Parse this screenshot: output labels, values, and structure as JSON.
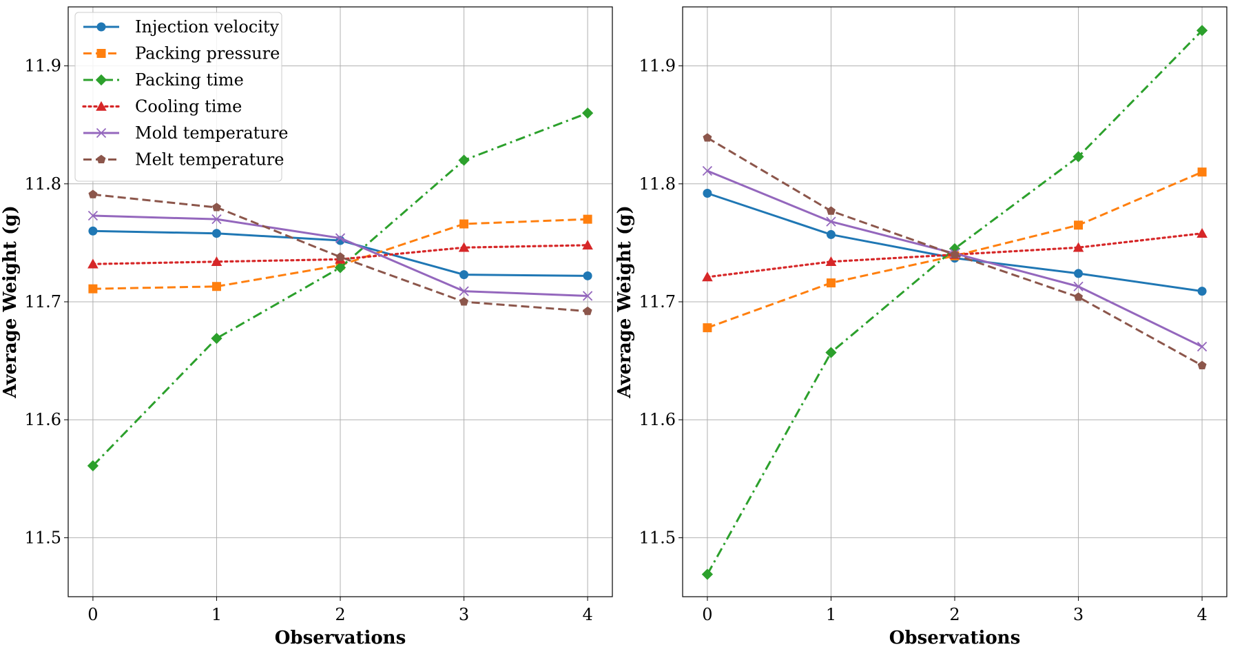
{
  "chart_data": [
    {
      "type": "line",
      "title": "",
      "xlabel": "Observations",
      "ylabel": "Average Weight (g)",
      "x": [
        0,
        1,
        2,
        3,
        4
      ],
      "xticks": [
        "0",
        "1",
        "2",
        "3",
        "4"
      ],
      "yticks": [
        "11.5",
        "11.6",
        "11.7",
        "11.8",
        "11.9"
      ],
      "xlim": [
        -0.2,
        4.2
      ],
      "ylim": [
        11.45,
        11.95
      ],
      "grid": true,
      "legend": "upper-left",
      "series": [
        {
          "name": "Injection velocity",
          "values": [
            11.76,
            11.758,
            11.752,
            11.723,
            11.722
          ],
          "color": "#1f77b4",
          "style": "solid",
          "marker": "circle"
        },
        {
          "name": "Packing pressure",
          "values": [
            11.711,
            11.713,
            11.731,
            11.766,
            11.77
          ],
          "color": "#ff7f0e",
          "style": "dashed",
          "marker": "square"
        },
        {
          "name": "Packing time",
          "values": [
            11.561,
            11.669,
            11.729,
            11.82,
            11.86
          ],
          "color": "#2ca02c",
          "style": "dashdot",
          "marker": "diamond"
        },
        {
          "name": "Cooling time",
          "values": [
            11.732,
            11.734,
            11.736,
            11.746,
            11.748
          ],
          "color": "#d62728",
          "style": "dotted",
          "marker": "triangle"
        },
        {
          "name": "Mold temperature",
          "values": [
            11.773,
            11.77,
            11.754,
            11.709,
            11.705
          ],
          "color": "#9467bd",
          "style": "solid",
          "marker": "x"
        },
        {
          "name": "Melt temperature",
          "values": [
            11.791,
            11.78,
            11.738,
            11.7,
            11.692
          ],
          "color": "#8c564b",
          "style": "dashed",
          "marker": "pentagon"
        }
      ]
    },
    {
      "type": "line",
      "title": "",
      "xlabel": "Observations",
      "ylabel": "Average Weight (g)",
      "x": [
        0,
        1,
        2,
        3,
        4
      ],
      "xticks": [
        "0",
        "1",
        "2",
        "3",
        "4"
      ],
      "yticks": [
        "11.5",
        "11.6",
        "11.7",
        "11.8",
        "11.9"
      ],
      "xlim": [
        -0.2,
        4.2
      ],
      "ylim": [
        11.45,
        11.95
      ],
      "grid": true,
      "legend": "none",
      "series": [
        {
          "name": "Injection velocity",
          "values": [
            11.792,
            11.757,
            11.737,
            11.724,
            11.709
          ],
          "color": "#1f77b4",
          "style": "solid",
          "marker": "circle"
        },
        {
          "name": "Packing pressure",
          "values": [
            11.678,
            11.716,
            11.739,
            11.765,
            11.81
          ],
          "color": "#ff7f0e",
          "style": "dashed",
          "marker": "square"
        },
        {
          "name": "Packing time",
          "values": [
            11.469,
            11.657,
            11.745,
            11.823,
            11.93
          ],
          "color": "#2ca02c",
          "style": "dashdot",
          "marker": "diamond"
        },
        {
          "name": "Cooling time",
          "values": [
            11.721,
            11.734,
            11.74,
            11.746,
            11.758
          ],
          "color": "#d62728",
          "style": "dotted",
          "marker": "triangle"
        },
        {
          "name": "Mold temperature",
          "values": [
            11.811,
            11.768,
            11.741,
            11.713,
            11.662
          ],
          "color": "#9467bd",
          "style": "solid",
          "marker": "x"
        },
        {
          "name": "Melt temperature",
          "values": [
            11.839,
            11.777,
            11.74,
            11.704,
            11.646
          ],
          "color": "#8c564b",
          "style": "dashed",
          "marker": "pentagon"
        }
      ]
    }
  ]
}
